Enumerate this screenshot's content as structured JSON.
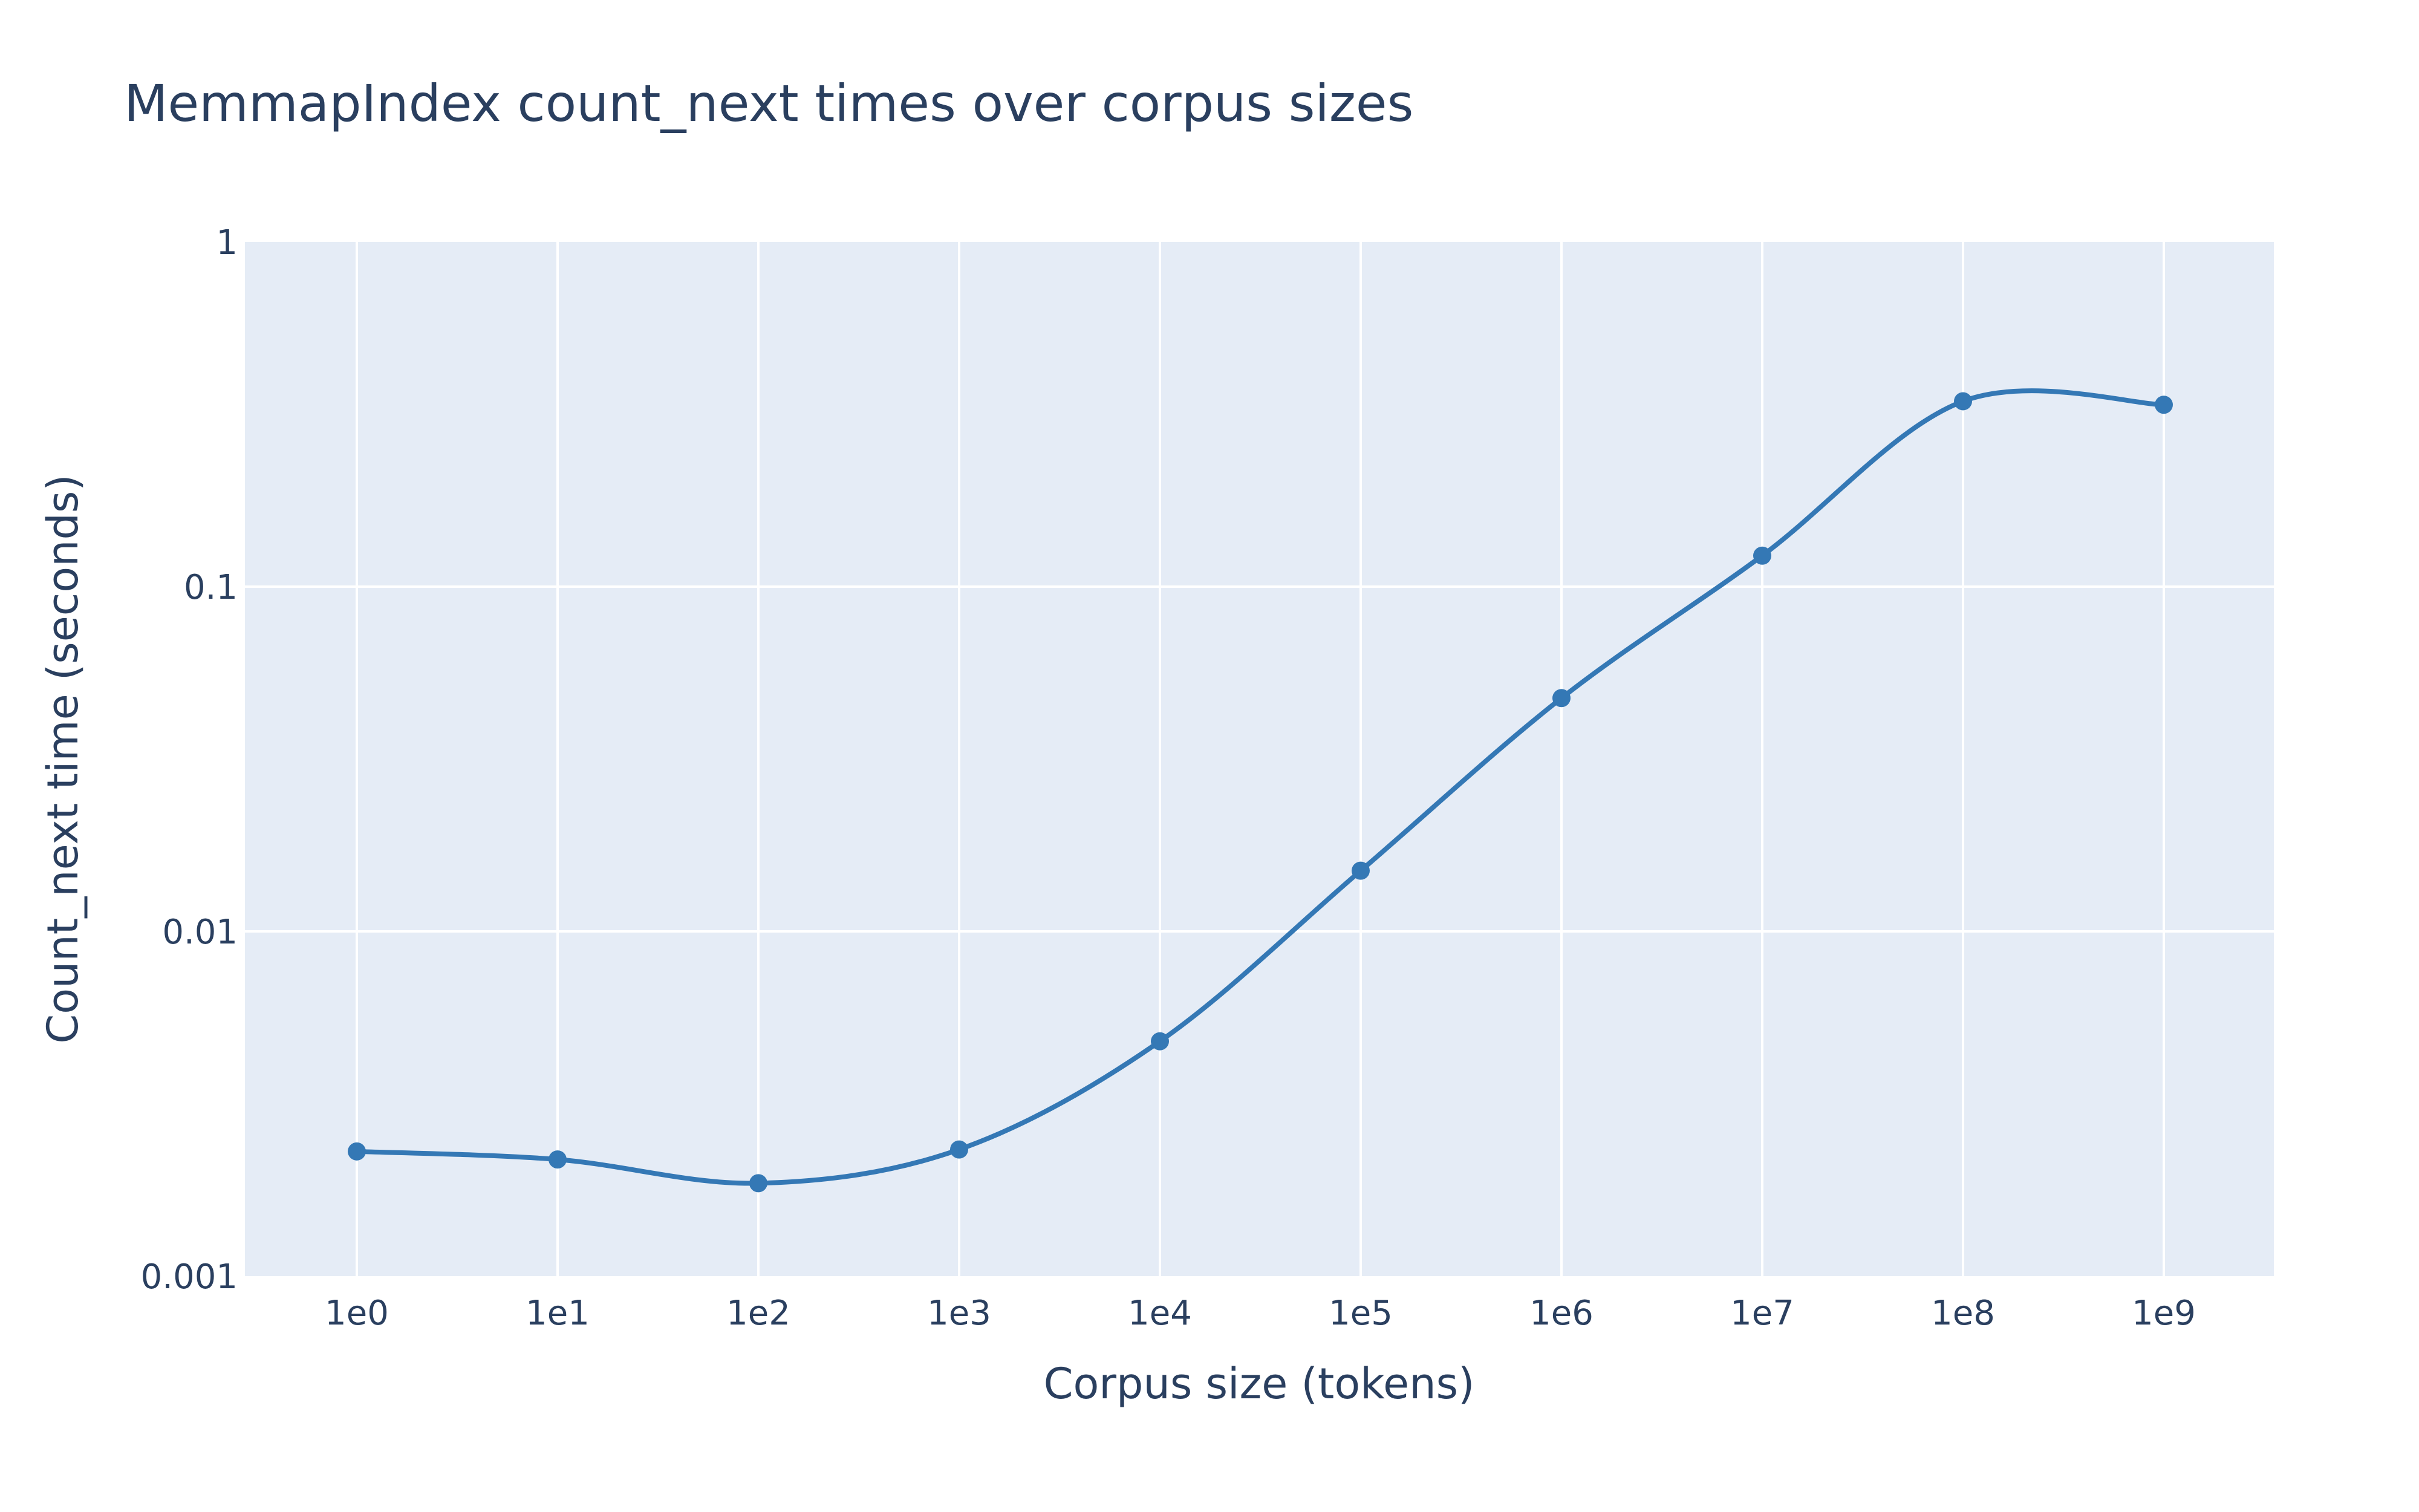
{
  "chart_data": {
    "type": "line",
    "title": "MemmapIndex count_next times over corpus sizes",
    "xlabel": "Corpus size (tokens)",
    "ylabel": "Count_next time (seconds)",
    "x_scale": "log",
    "y_scale": "log",
    "x_ticks": [
      "1e0",
      "1e1",
      "1e2",
      "1e3",
      "1e4",
      "1e5",
      "1e6",
      "1e7",
      "1e8",
      "1e9"
    ],
    "y_ticks": [
      "0.001",
      "0.01",
      "0.1",
      "1"
    ],
    "ylim": [
      0.001,
      1
    ],
    "grid": true,
    "line_shape": "spline",
    "colors": {
      "series": "#3478b5",
      "plot_bg": "#e5ecf6",
      "grid": "#ffffff",
      "text": "#2a3f5f"
    },
    "series": [
      {
        "x": [
          1,
          10,
          100,
          1000,
          10000,
          100000,
          1000000,
          10000000,
          100000000,
          1000000000
        ],
        "y": [
          0.0023,
          0.00218,
          0.00186,
          0.00233,
          0.0048,
          0.015,
          0.0475,
          0.123,
          0.345,
          0.337
        ]
      }
    ]
  }
}
